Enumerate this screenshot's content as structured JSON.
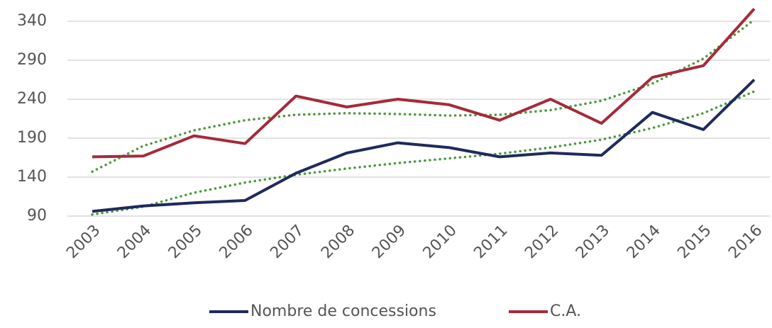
{
  "chart_data": {
    "type": "line",
    "categories": [
      "2003",
      "2004",
      "2005",
      "2006",
      "2007",
      "2008",
      "2009",
      "2010",
      "2011",
      "2012",
      "2013",
      "2014",
      "2015",
      "2016"
    ],
    "series": [
      {
        "name": "Nombre de concessions",
        "color": "#1f2a5c",
        "values": [
          96,
          103,
          107,
          110,
          145,
          171,
          184,
          178,
          166,
          171,
          168,
          223,
          201,
          265
        ]
      },
      {
        "name": "C.A.",
        "color": "#a52a3a",
        "values": [
          166,
          167,
          193,
          183,
          244,
          230,
          240,
          233,
          213,
          240,
          209,
          268,
          283,
          356
        ]
      }
    ],
    "trendlines": [
      {
        "color": "#4a9a3a",
        "values": [
          92,
          102,
          120,
          133,
          143,
          151,
          158,
          164,
          170,
          178,
          188,
          203,
          222,
          250
        ]
      },
      {
        "color": "#4a9a3a",
        "values": [
          147,
          180,
          200,
          213,
          220,
          222,
          221,
          219,
          220,
          226,
          238,
          260,
          292,
          342
        ]
      }
    ],
    "ylim": [
      90,
      360
    ],
    "yticks": [
      90,
      140,
      190,
      240,
      290,
      340
    ],
    "grid": true,
    "legend": "bottom"
  }
}
